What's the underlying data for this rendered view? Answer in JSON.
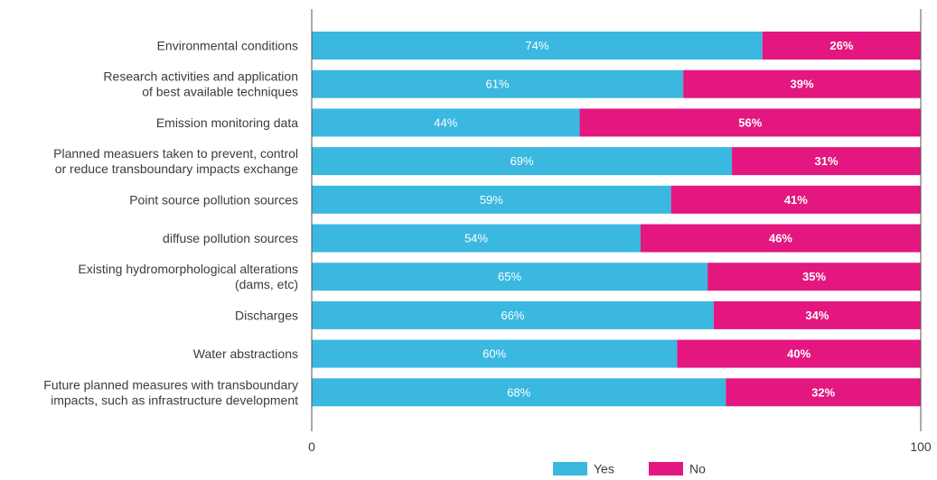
{
  "chart_data": {
    "type": "bar",
    "orientation": "horizontal",
    "stacked": true,
    "categories": [
      [
        "Environmental conditions"
      ],
      [
        "Research activities and application",
        "of best available techniques"
      ],
      [
        "Emission monitoring data"
      ],
      [
        "Planned measuers taken to prevent, control",
        "or reduce transboundary impacts exchange"
      ],
      [
        "Point source pollution sources"
      ],
      [
        "diffuse pollution sources"
      ],
      [
        "Existing hydromorphological alterations",
        "(dams, etc)"
      ],
      [
        "Discharges"
      ],
      [
        "Water abstractions"
      ],
      [
        "Future planned measures with transboundary",
        "impacts, such as infrastructure development"
      ]
    ],
    "series": [
      {
        "name": "Yes",
        "color": "#3ab8e0",
        "values": [
          74,
          61,
          44,
          69,
          59,
          54,
          65,
          66,
          60,
          68
        ],
        "labels": [
          "74%",
          "61%",
          "44%",
          "69%",
          "59%",
          "54%",
          "65%",
          "66%",
          "60%",
          "68%"
        ]
      },
      {
        "name": "No",
        "color": "#e3177f",
        "values": [
          26,
          39,
          56,
          31,
          41,
          46,
          35,
          34,
          40,
          32
        ],
        "labels": [
          "26%",
          "39%",
          "56%",
          "31%",
          "41%",
          "46%",
          "35%",
          "34%",
          "40%",
          "32%"
        ]
      }
    ],
    "xlim": [
      0,
      100
    ],
    "x_ticks": [
      "0",
      "100"
    ],
    "title": "",
    "xlabel": "",
    "ylabel": "",
    "grid": false,
    "legend": "bottom-center"
  }
}
